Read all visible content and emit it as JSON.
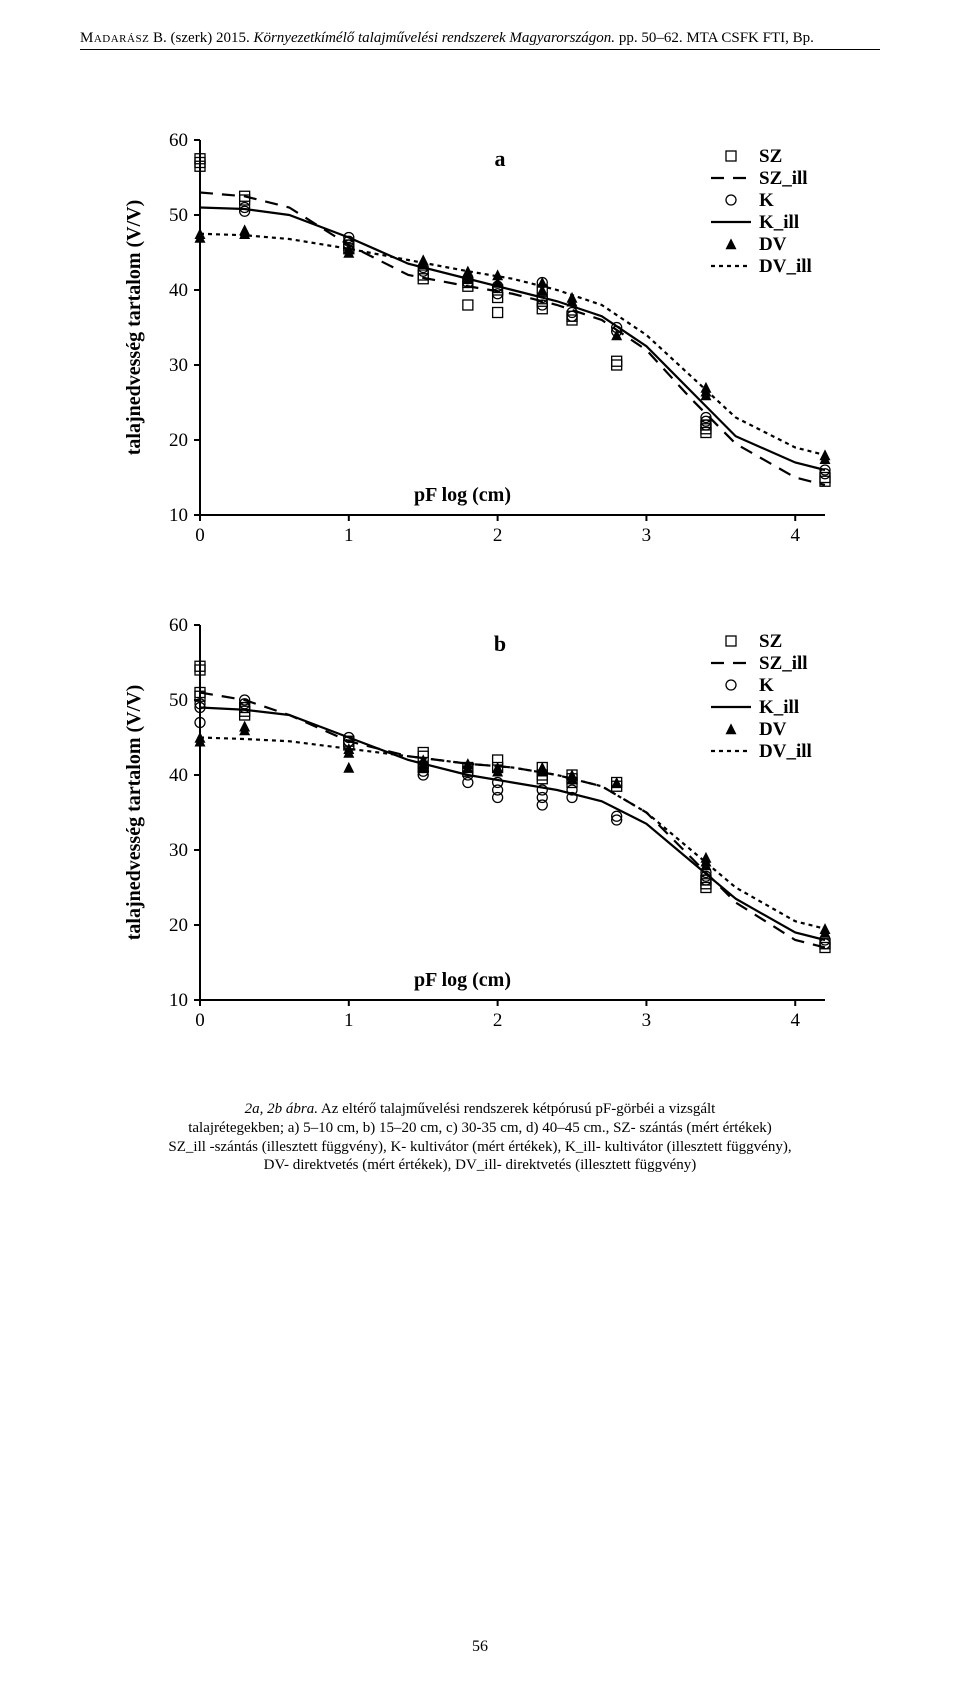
{
  "running_head": {
    "author_caps": "Madarász",
    "initials": " B. (szerk) 2015. ",
    "title_ital": "Környezetkímélő talajművelési rendszerek Magyarországon.",
    "tail": " pp. 50–62. MTA CSFK FTI, Bp."
  },
  "page_number": "56",
  "caption": {
    "prefix_ital": "2a, 2b ábra.",
    "line1": " Az eltérő talajművelési rendszerek kétpórusú pF-görbéi a vizsgált",
    "line2a": "talajrétegekben; ",
    "line2b": "a) 5–10 cm, b) 15–20 cm, c) 30-35 cm, d) 40–45 cm., SZ- szántás (mért értékek)",
    "line3": "SZ_ill -szántás (illesztett függvény), K- kultivátor (mért értékek), K_ill- kultivátor (illesztett függvény),",
    "line4": "DV- direktvetés (mért értékek), DV_ill- direktvetés (illesztett függvény)"
  },
  "legend": {
    "items": [
      {
        "key": "SZ",
        "label": "SZ",
        "type": "marker",
        "marker": "square"
      },
      {
        "key": "SZ_ill",
        "label": "SZ_ill",
        "type": "line",
        "dash": "13,9"
      },
      {
        "key": "K",
        "label": "K",
        "type": "marker",
        "marker": "circle"
      },
      {
        "key": "K_ill",
        "label": "K_ill",
        "type": "line",
        "dash": ""
      },
      {
        "key": "DV",
        "label": "DV",
        "type": "marker",
        "marker": "triangle"
      },
      {
        "key": "DV_ill",
        "label": "DV_ill",
        "type": "line",
        "dash": "4,4"
      }
    ]
  },
  "style": {
    "stroke": "#000000",
    "line_width": 2.2,
    "marker_size": 5,
    "axis_width": 2,
    "tick_len": 6,
    "tick_fontsize": 19,
    "axis_label_fontsize": 20,
    "legend_fontsize": 19,
    "panel_title_fontsize": 22,
    "background": "#ffffff"
  },
  "charts": [
    {
      "id": "chart-a",
      "panel_title": "a",
      "x_axis": {
        "label": "pF log (cm)",
        "min": 0,
        "max": 4.2,
        "ticks": [
          0,
          1,
          2,
          3,
          4
        ]
      },
      "y_axis": {
        "label": "talajnedvesség tartalom (V/V)",
        "min": 10,
        "max": 60,
        "ticks": [
          10,
          20,
          30,
          40,
          50,
          60
        ]
      },
      "lines": {
        "SZ_ill": [
          [
            0,
            53
          ],
          [
            0.3,
            52.5
          ],
          [
            0.6,
            51
          ],
          [
            1.0,
            46
          ],
          [
            1.4,
            42
          ],
          [
            1.8,
            40.5
          ],
          [
            2.1,
            39.5
          ],
          [
            2.4,
            38
          ],
          [
            2.7,
            36
          ],
          [
            3.0,
            32
          ],
          [
            3.3,
            25.5
          ],
          [
            3.6,
            19.5
          ],
          [
            4.0,
            15
          ],
          [
            4.2,
            14
          ]
        ],
        "K_ill": [
          [
            0,
            51
          ],
          [
            0.3,
            50.8
          ],
          [
            0.6,
            50
          ],
          [
            1.0,
            47
          ],
          [
            1.4,
            43.5
          ],
          [
            1.8,
            41.5
          ],
          [
            2.1,
            40
          ],
          [
            2.4,
            38.5
          ],
          [
            2.7,
            36.5
          ],
          [
            3.0,
            32.5
          ],
          [
            3.3,
            26.5
          ],
          [
            3.6,
            20.5
          ],
          [
            4.0,
            17
          ],
          [
            4.2,
            16
          ]
        ],
        "DV_ill": [
          [
            0,
            47.5
          ],
          [
            0.3,
            47.3
          ],
          [
            0.6,
            46.8
          ],
          [
            1.0,
            45.5
          ],
          [
            1.4,
            44
          ],
          [
            1.8,
            42.5
          ],
          [
            2.1,
            41.5
          ],
          [
            2.4,
            40
          ],
          [
            2.7,
            38
          ],
          [
            3.0,
            34
          ],
          [
            3.3,
            28.5
          ],
          [
            3.6,
            23
          ],
          [
            4.0,
            19
          ],
          [
            4.2,
            18
          ]
        ]
      },
      "points": {
        "SZ": [
          [
            0,
            57.5
          ],
          [
            0,
            57
          ],
          [
            0,
            56.5
          ],
          [
            0.3,
            52.5
          ],
          [
            0.3,
            52
          ],
          [
            1.0,
            46
          ],
          [
            1.0,
            45.5
          ],
          [
            1.5,
            42
          ],
          [
            1.5,
            41.5
          ],
          [
            1.8,
            41
          ],
          [
            1.8,
            40.5
          ],
          [
            1.8,
            38
          ],
          [
            2.0,
            40
          ],
          [
            2.0,
            39
          ],
          [
            2.0,
            37
          ],
          [
            2.3,
            40
          ],
          [
            2.3,
            38.5
          ],
          [
            2.3,
            37.5
          ],
          [
            2.5,
            36.5
          ],
          [
            2.5,
            36
          ],
          [
            2.8,
            30.5
          ],
          [
            2.8,
            30
          ],
          [
            3.4,
            21.5
          ],
          [
            3.4,
            21
          ],
          [
            3.4,
            22
          ],
          [
            4.2,
            15
          ],
          [
            4.2,
            14.5
          ]
        ],
        "K": [
          [
            0.3,
            51
          ],
          [
            0.3,
            50.5
          ],
          [
            1.0,
            47
          ],
          [
            1.0,
            46.5
          ],
          [
            1.0,
            46
          ],
          [
            1.5,
            42.5
          ],
          [
            1.5,
            43
          ],
          [
            1.8,
            41.5
          ],
          [
            1.8,
            41
          ],
          [
            2.0,
            40.5
          ],
          [
            2.0,
            39.5
          ],
          [
            2.3,
            41
          ],
          [
            2.3,
            39
          ],
          [
            2.3,
            38
          ],
          [
            2.5,
            37
          ],
          [
            2.5,
            36.5
          ],
          [
            2.8,
            35
          ],
          [
            2.8,
            34.5
          ],
          [
            3.4,
            22.5
          ],
          [
            3.4,
            22
          ],
          [
            3.4,
            23
          ],
          [
            4.2,
            16
          ],
          [
            4.2,
            15.5
          ]
        ],
        "DV": [
          [
            0,
            47.5
          ],
          [
            0,
            47
          ],
          [
            0.3,
            48
          ],
          [
            0.3,
            47.5
          ],
          [
            1.0,
            45
          ],
          [
            1.0,
            45.5
          ],
          [
            1.5,
            44
          ],
          [
            1.5,
            43.5
          ],
          [
            1.8,
            42.5
          ],
          [
            1.8,
            42
          ],
          [
            1.8,
            41.5
          ],
          [
            2.0,
            42
          ],
          [
            2.0,
            41
          ],
          [
            2.3,
            41
          ],
          [
            2.3,
            40
          ],
          [
            2.5,
            39
          ],
          [
            2.5,
            38.5
          ],
          [
            2.8,
            34
          ],
          [
            3.4,
            27
          ],
          [
            3.4,
            26.5
          ],
          [
            3.4,
            26
          ],
          [
            4.2,
            18
          ],
          [
            4.2,
            17.5
          ]
        ]
      }
    },
    {
      "id": "chart-b",
      "panel_title": "b",
      "x_axis": {
        "label": "pF log (cm)",
        "min": 0,
        "max": 4.2,
        "ticks": [
          0,
          1,
          2,
          3,
          4
        ]
      },
      "y_axis": {
        "label": "talajnedvesség tartalom (V/V)",
        "min": 10,
        "max": 60,
        "ticks": [
          10,
          20,
          30,
          40,
          50,
          60
        ]
      },
      "lines": {
        "SZ_ill": [
          [
            0,
            51
          ],
          [
            0.3,
            50
          ],
          [
            0.6,
            48
          ],
          [
            1.0,
            44.5
          ],
          [
            1.4,
            42.5
          ],
          [
            1.8,
            41.5
          ],
          [
            2.1,
            41
          ],
          [
            2.4,
            40
          ],
          [
            2.7,
            38.5
          ],
          [
            3.0,
            35
          ],
          [
            3.3,
            29
          ],
          [
            3.6,
            23
          ],
          [
            4.0,
            18
          ],
          [
            4.2,
            17
          ]
        ],
        "K_ill": [
          [
            0,
            49
          ],
          [
            0.3,
            48.7
          ],
          [
            0.6,
            48
          ],
          [
            1.0,
            45
          ],
          [
            1.4,
            42
          ],
          [
            1.8,
            40
          ],
          [
            2.1,
            39
          ],
          [
            2.4,
            38
          ],
          [
            2.7,
            36.5
          ],
          [
            3.0,
            33.5
          ],
          [
            3.3,
            28.5
          ],
          [
            3.6,
            23.5
          ],
          [
            4.0,
            19
          ],
          [
            4.2,
            18
          ]
        ],
        "DV_ill": [
          [
            0,
            45
          ],
          [
            0.3,
            44.8
          ],
          [
            0.6,
            44.5
          ],
          [
            1.0,
            43.5
          ],
          [
            1.4,
            42.5
          ],
          [
            1.8,
            41.5
          ],
          [
            2.1,
            41
          ],
          [
            2.4,
            40
          ],
          [
            2.7,
            38.5
          ],
          [
            3.0,
            35
          ],
          [
            3.3,
            30
          ],
          [
            3.6,
            25
          ],
          [
            4.0,
            20.5
          ],
          [
            4.2,
            19.5
          ]
        ]
      },
      "points": {
        "SZ": [
          [
            0,
            54.5
          ],
          [
            0,
            54
          ],
          [
            0,
            51
          ],
          [
            0,
            50.5
          ],
          [
            0.3,
            49
          ],
          [
            0.3,
            48.5
          ],
          [
            0.3,
            48
          ],
          [
            1.0,
            44
          ],
          [
            1.0,
            44.5
          ],
          [
            1.5,
            43
          ],
          [
            1.5,
            42.5
          ],
          [
            1.5,
            41
          ],
          [
            1.8,
            41
          ],
          [
            1.8,
            40.5
          ],
          [
            2.0,
            41
          ],
          [
            2.0,
            42
          ],
          [
            2.3,
            41
          ],
          [
            2.3,
            40
          ],
          [
            2.3,
            39.5
          ],
          [
            2.5,
            40
          ],
          [
            2.5,
            39.5
          ],
          [
            2.5,
            39
          ],
          [
            2.8,
            39
          ],
          [
            2.8,
            38.5
          ],
          [
            3.4,
            26
          ],
          [
            3.4,
            25.5
          ],
          [
            3.4,
            25
          ],
          [
            4.2,
            17.5
          ],
          [
            4.2,
            17
          ]
        ],
        "K": [
          [
            0,
            49.5
          ],
          [
            0,
            49
          ],
          [
            0,
            47
          ],
          [
            0.3,
            50
          ],
          [
            0.3,
            49.5
          ],
          [
            0.3,
            49
          ],
          [
            1.0,
            45
          ],
          [
            1.0,
            44.5
          ],
          [
            1.5,
            41
          ],
          [
            1.5,
            40.5
          ],
          [
            1.5,
            40
          ],
          [
            1.8,
            40
          ],
          [
            1.8,
            39
          ],
          [
            2.0,
            39
          ],
          [
            2.0,
            38
          ],
          [
            2.0,
            37
          ],
          [
            2.3,
            38
          ],
          [
            2.3,
            37
          ],
          [
            2.3,
            36
          ],
          [
            2.5,
            38
          ],
          [
            2.5,
            37
          ],
          [
            2.8,
            34.5
          ],
          [
            2.8,
            34
          ],
          [
            3.4,
            27
          ],
          [
            3.4,
            26.5
          ],
          [
            3.4,
            26
          ],
          [
            4.2,
            18
          ],
          [
            4.2,
            17.5
          ]
        ],
        "DV": [
          [
            0,
            45
          ],
          [
            0,
            44.5
          ],
          [
            0.3,
            46.5
          ],
          [
            0.3,
            46
          ],
          [
            1.0,
            43.5
          ],
          [
            1.0,
            43
          ],
          [
            1.0,
            41
          ],
          [
            1.5,
            42
          ],
          [
            1.5,
            41.5
          ],
          [
            1.5,
            41
          ],
          [
            1.8,
            41.5
          ],
          [
            1.8,
            41
          ],
          [
            2.0,
            41
          ],
          [
            2.0,
            40.5
          ],
          [
            2.3,
            41
          ],
          [
            2.3,
            40.5
          ],
          [
            2.5,
            40
          ],
          [
            2.5,
            39.5
          ],
          [
            2.8,
            39
          ],
          [
            3.4,
            29
          ],
          [
            3.4,
            28.5
          ],
          [
            3.4,
            28
          ],
          [
            4.2,
            19.5
          ],
          [
            4.2,
            19
          ]
        ]
      }
    }
  ]
}
